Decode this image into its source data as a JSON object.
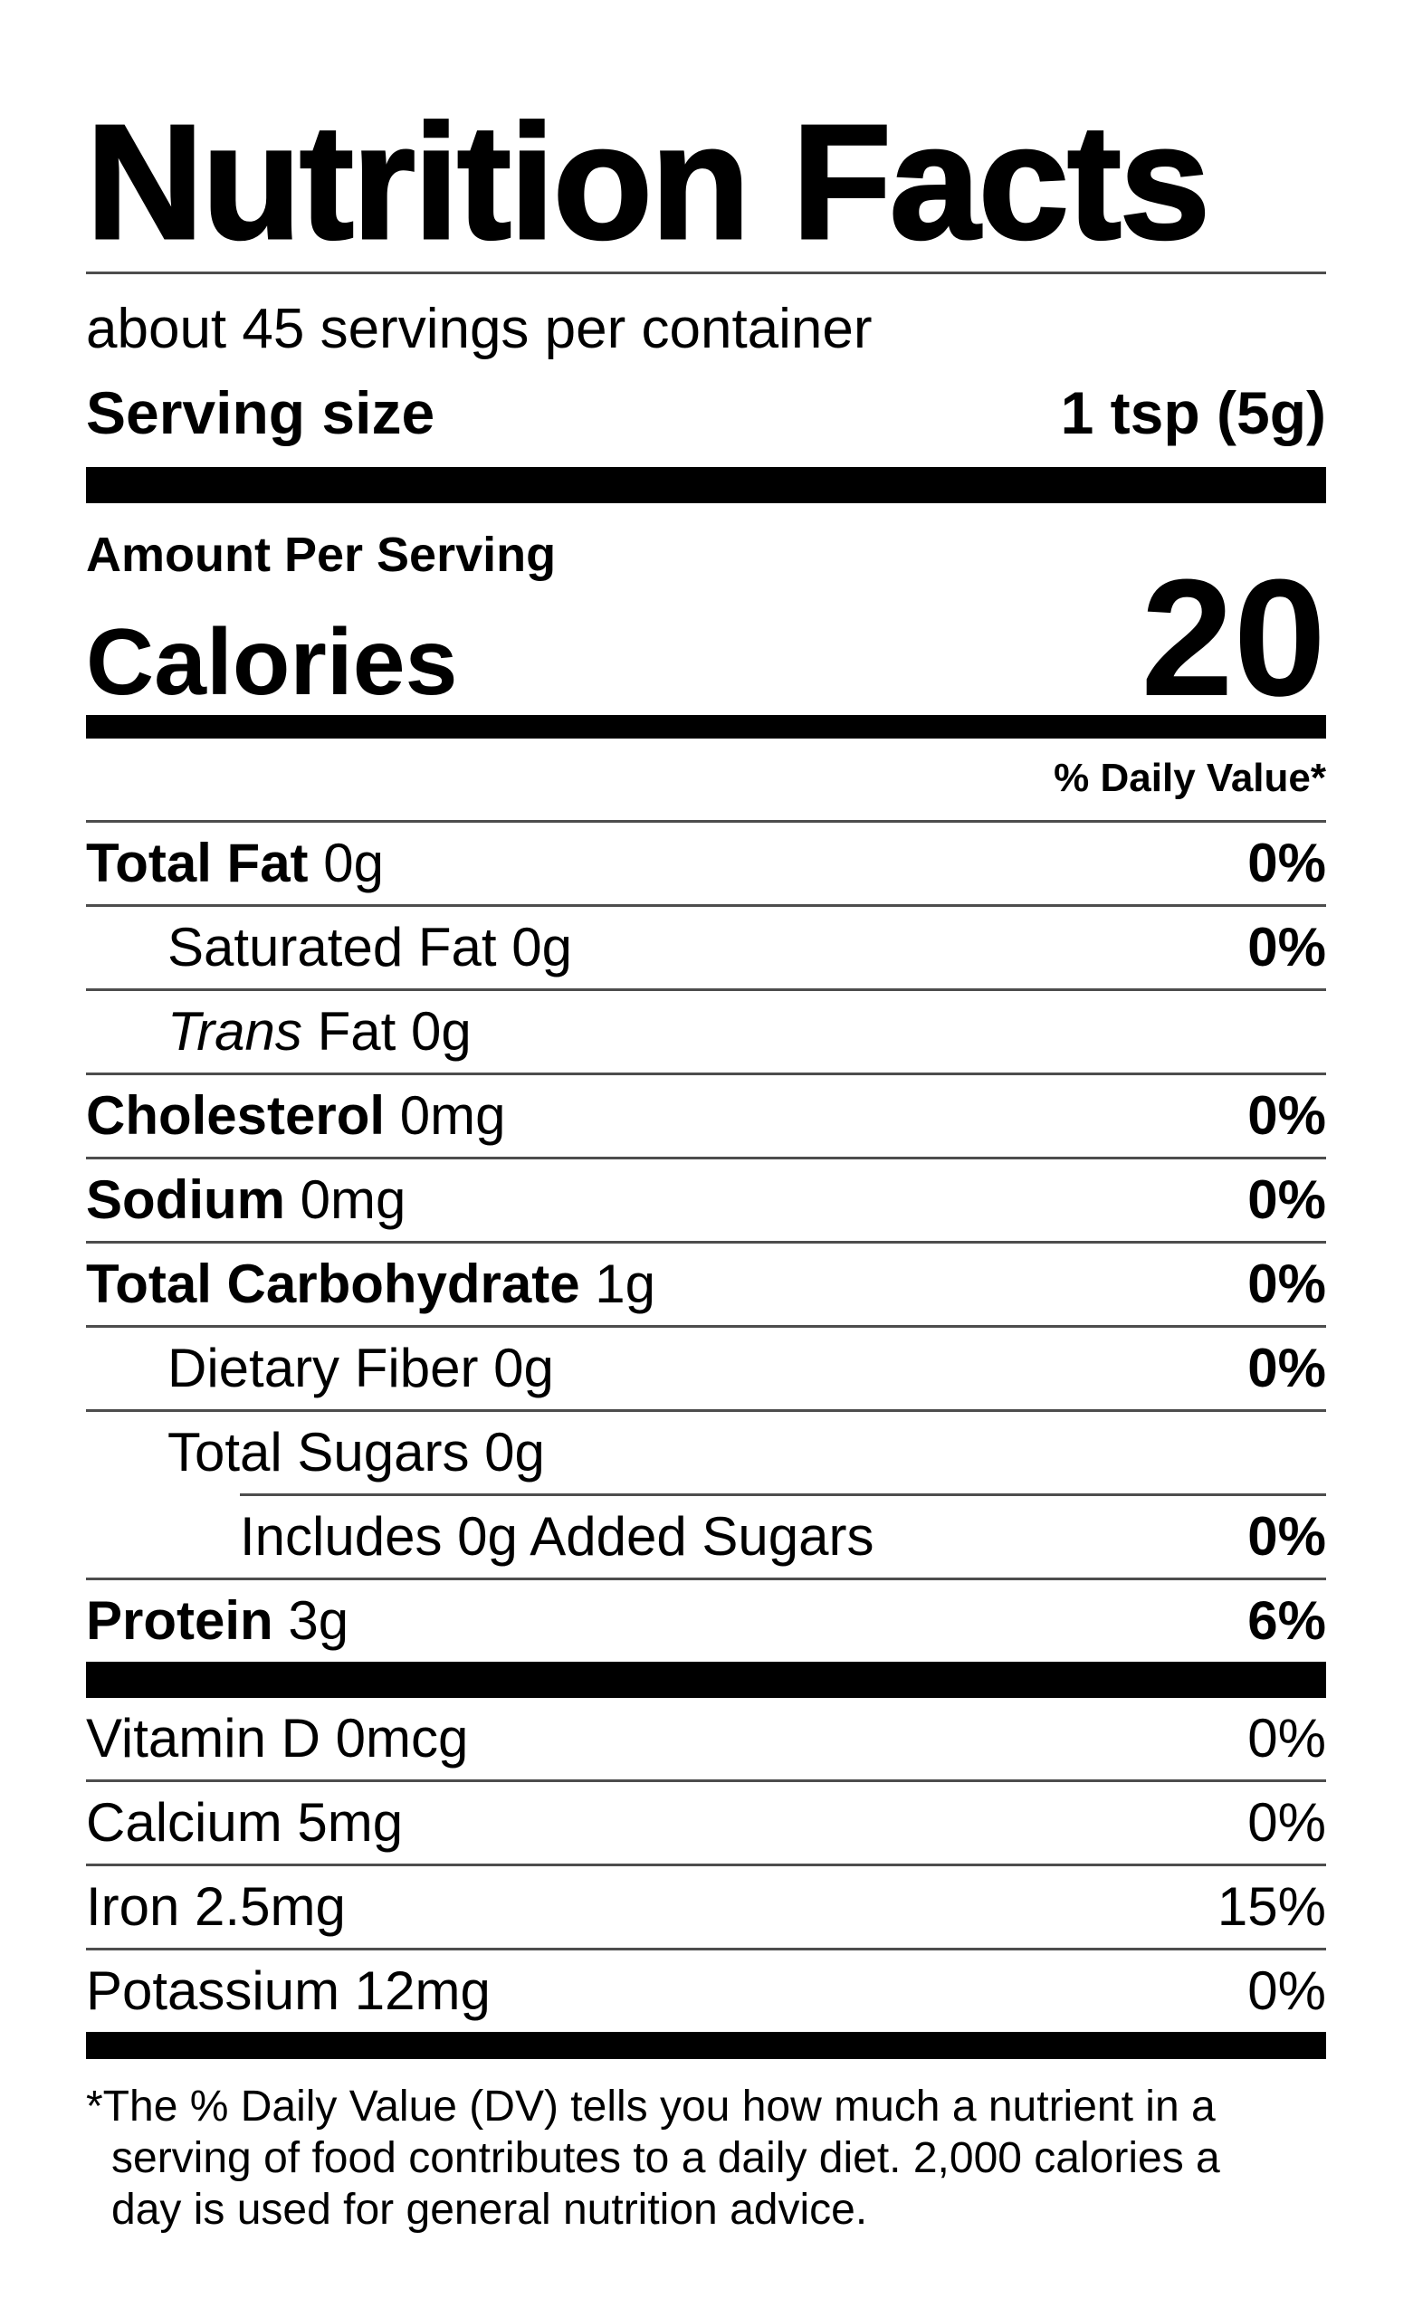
{
  "label": {
    "title": "Nutrition Facts",
    "servings_per_container": "about 45 servings per container",
    "serving_size": {
      "label": "Serving size",
      "value": "1 tsp (5g)"
    },
    "amount_per_serving": "Amount Per Serving",
    "calories": {
      "label": "Calories",
      "value": "20"
    },
    "daily_value_header": "% Daily Value*"
  },
  "nutrients": [
    {
      "bold": "Total Fat",
      "plain": " 0g",
      "dv": "0%"
    },
    {
      "plain": "Saturated Fat 0g",
      "dv": "0%"
    },
    {
      "italic": "Trans",
      "plain": " Fat 0g",
      "dv": ""
    },
    {
      "bold": "Cholesterol",
      "plain": " 0mg",
      "dv": "0%"
    },
    {
      "bold": "Sodium",
      "plain": " 0mg",
      "dv": "0%"
    },
    {
      "bold": "Total Carbohydrate",
      "plain": " 1g",
      "dv": "0%"
    },
    {
      "plain": "Dietary Fiber 0g",
      "dv": "0%"
    },
    {
      "plain": "Total Sugars 0g",
      "dv": ""
    },
    {
      "plain": "Includes 0g Added Sugars",
      "dv": "0%"
    },
    {
      "bold": "Protein",
      "plain": " 3g",
      "dv": "6%"
    }
  ],
  "micronutrients": [
    {
      "label": "Vitamin D 0mcg",
      "dv": "0%"
    },
    {
      "label": "Calcium 5mg",
      "dv": "0%"
    },
    {
      "label": "Iron 2.5mg",
      "dv": "15%"
    },
    {
      "label": "Potassium 12mg",
      "dv": "0%"
    }
  ],
  "footnote": {
    "lines": [
      "*The % Daily Value (DV) tells you how much a nutrient in a",
      "serving of food contributes to a daily diet. 2,000 calories a",
      "day is used for general nutrition advice."
    ]
  },
  "colors": {
    "text": "#000000",
    "background": "#ffffff",
    "hairline": "#4d4d4d",
    "bars": "#000000"
  }
}
